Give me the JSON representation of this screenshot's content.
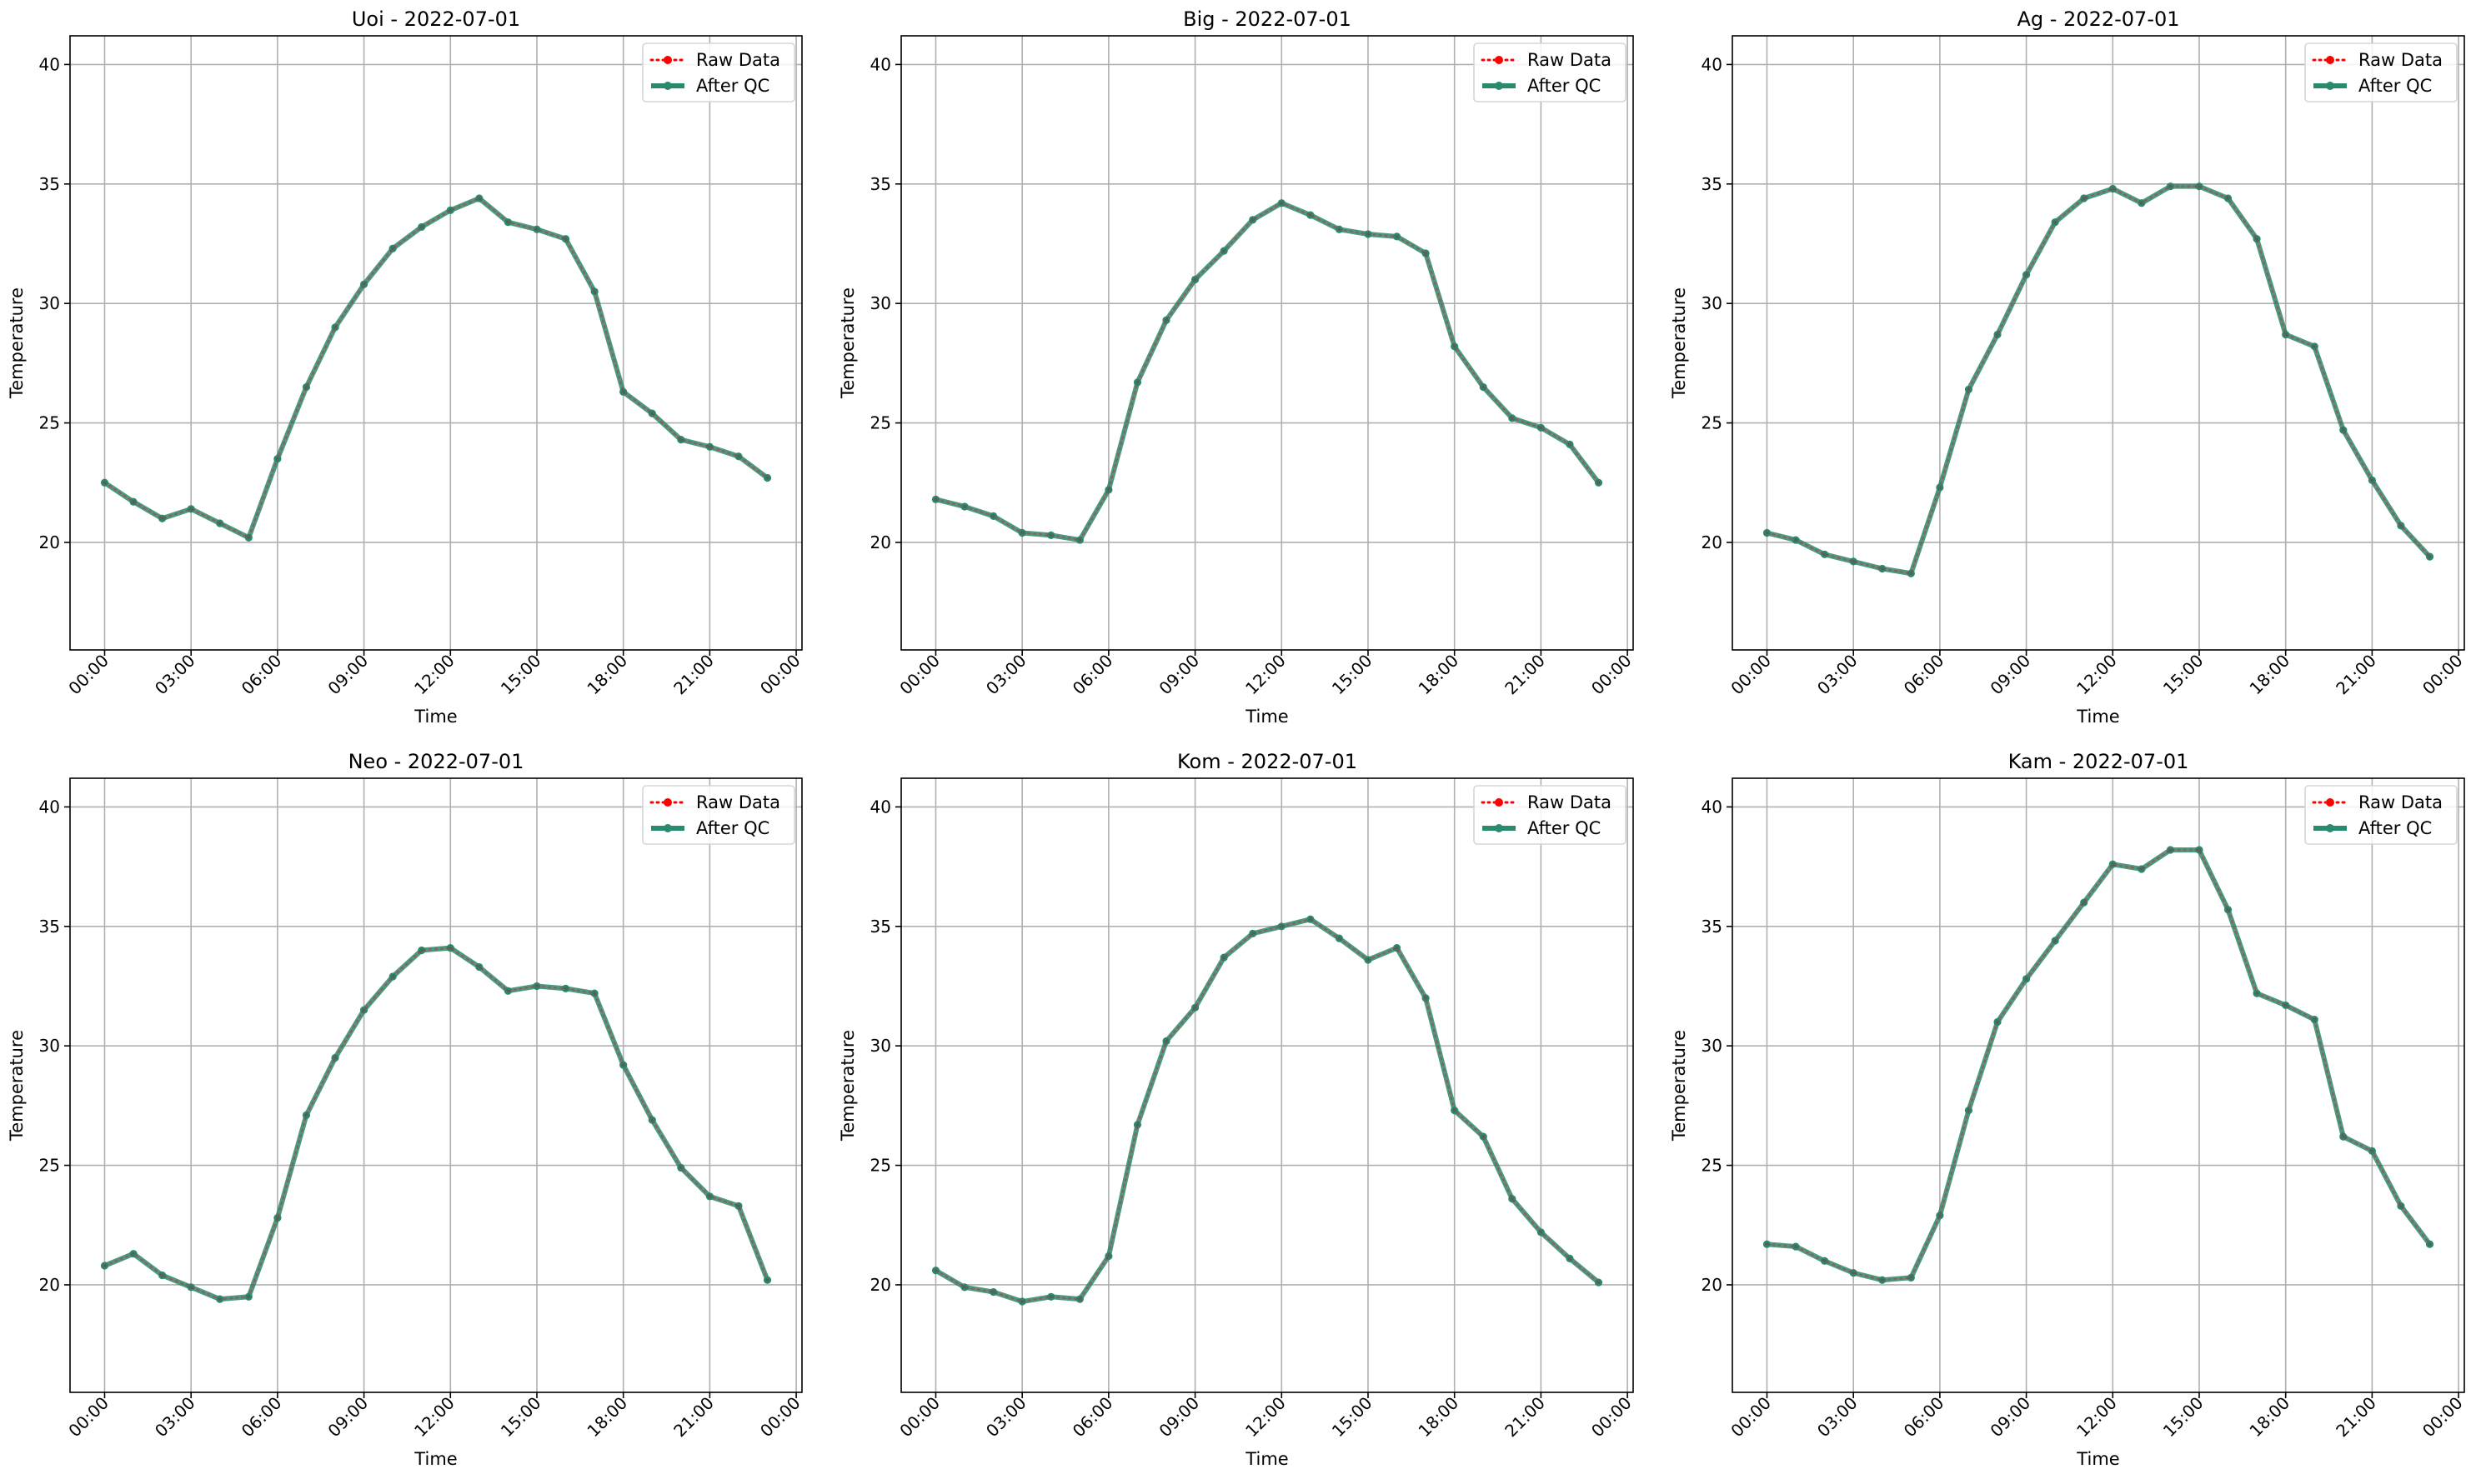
{
  "figure": {
    "background": "#ffffff"
  },
  "style": {
    "raw_color": "#ff0000",
    "qc_color": "#2a8a6e",
    "grid_color": "#b0b0b0",
    "axis_color": "#000000"
  },
  "legend": {
    "raw_label": "Raw Data",
    "qc_label": "After QC",
    "placement": "upper right"
  },
  "chart_data": [
    {
      "type": "line",
      "title": "Uoi - 2022-07-01",
      "xlabel": "Time",
      "ylabel": "Temperature",
      "ylim": [
        15.5,
        41.2
      ],
      "yticks": [
        20,
        25,
        30,
        35,
        40
      ],
      "xticks": [
        "00:00",
        "03:00",
        "06:00",
        "09:00",
        "12:00",
        "15:00",
        "18:00",
        "21:00",
        "00:00"
      ],
      "grid": true,
      "x_hours": [
        0,
        1,
        2,
        3,
        4,
        5,
        6,
        7,
        8,
        9,
        10,
        11,
        12,
        13,
        14,
        15,
        16,
        17,
        18,
        19,
        20,
        21,
        22,
        23
      ],
      "series": [
        {
          "name": "Raw Data",
          "values": [
            22.5,
            21.7,
            21.0,
            21.4,
            20.8,
            20.2,
            23.5,
            26.5,
            29.0,
            30.8,
            32.3,
            33.2,
            33.9,
            34.4,
            33.4,
            33.1,
            32.7,
            30.5,
            26.3,
            25.4,
            24.3,
            24.0,
            23.6,
            22.7
          ]
        },
        {
          "name": "After QC",
          "values": [
            22.5,
            21.7,
            21.0,
            21.4,
            20.8,
            20.2,
            23.5,
            26.5,
            29.0,
            30.8,
            32.3,
            33.2,
            33.9,
            34.4,
            33.4,
            33.1,
            32.7,
            30.5,
            26.3,
            25.4,
            24.3,
            24.0,
            23.6,
            22.7
          ]
        }
      ]
    },
    {
      "type": "line",
      "title": "Big - 2022-07-01",
      "xlabel": "Time",
      "ylabel": "Temperature",
      "ylim": [
        15.5,
        41.2
      ],
      "yticks": [
        20,
        25,
        30,
        35,
        40
      ],
      "xticks": [
        "00:00",
        "03:00",
        "06:00",
        "09:00",
        "12:00",
        "15:00",
        "18:00",
        "21:00",
        "00:00"
      ],
      "grid": true,
      "x_hours": [
        0,
        1,
        2,
        3,
        4,
        5,
        6,
        7,
        8,
        9,
        10,
        11,
        12,
        13,
        14,
        15,
        16,
        17,
        18,
        19,
        20,
        21,
        22,
        23
      ],
      "series": [
        {
          "name": "Raw Data",
          "values": [
            21.8,
            21.5,
            21.1,
            20.4,
            20.3,
            20.1,
            22.2,
            26.7,
            29.3,
            31.0,
            32.2,
            33.5,
            34.2,
            33.7,
            33.1,
            32.9,
            32.8,
            32.1,
            28.2,
            26.5,
            25.2,
            24.8,
            24.1,
            22.5
          ]
        },
        {
          "name": "After QC",
          "values": [
            21.8,
            21.5,
            21.1,
            20.4,
            20.3,
            20.1,
            22.2,
            26.7,
            29.3,
            31.0,
            32.2,
            33.5,
            34.2,
            33.7,
            33.1,
            32.9,
            32.8,
            32.1,
            28.2,
            26.5,
            25.2,
            24.8,
            24.1,
            22.5
          ]
        }
      ]
    },
    {
      "type": "line",
      "title": "Ag - 2022-07-01",
      "xlabel": "Time",
      "ylabel": "Temperature",
      "ylim": [
        15.5,
        41.2
      ],
      "yticks": [
        20,
        25,
        30,
        35,
        40
      ],
      "xticks": [
        "00:00",
        "03:00",
        "06:00",
        "09:00",
        "12:00",
        "15:00",
        "18:00",
        "21:00",
        "00:00"
      ],
      "grid": true,
      "x_hours": [
        0,
        1,
        2,
        3,
        4,
        5,
        6,
        7,
        8,
        9,
        10,
        11,
        12,
        13,
        14,
        15,
        16,
        17,
        18,
        19,
        20,
        21,
        22,
        23
      ],
      "series": [
        {
          "name": "Raw Data",
          "values": [
            20.4,
            20.1,
            19.5,
            19.2,
            18.9,
            18.7,
            22.3,
            26.4,
            28.7,
            31.2,
            33.4,
            34.4,
            34.8,
            34.2,
            34.9,
            34.9,
            34.4,
            32.7,
            28.7,
            28.2,
            24.7,
            22.6,
            20.7,
            19.4
          ]
        },
        {
          "name": "After QC",
          "values": [
            20.4,
            20.1,
            19.5,
            19.2,
            18.9,
            18.7,
            22.3,
            26.4,
            28.7,
            31.2,
            33.4,
            34.4,
            34.8,
            34.2,
            34.9,
            34.9,
            34.4,
            32.7,
            28.7,
            28.2,
            24.7,
            22.6,
            20.7,
            19.4
          ]
        }
      ]
    },
    {
      "type": "line",
      "title": "Neo - 2022-07-01",
      "xlabel": "Time",
      "ylabel": "Temperature",
      "ylim": [
        15.5,
        41.2
      ],
      "yticks": [
        20,
        25,
        30,
        35,
        40
      ],
      "xticks": [
        "00:00",
        "03:00",
        "06:00",
        "09:00",
        "12:00",
        "15:00",
        "18:00",
        "21:00",
        "00:00"
      ],
      "grid": true,
      "x_hours": [
        0,
        1,
        2,
        3,
        4,
        5,
        6,
        7,
        8,
        9,
        10,
        11,
        12,
        13,
        14,
        15,
        16,
        17,
        18,
        19,
        20,
        21,
        22,
        23
      ],
      "series": [
        {
          "name": "Raw Data",
          "values": [
            20.8,
            21.3,
            20.4,
            19.9,
            19.4,
            19.5,
            22.8,
            27.1,
            29.5,
            31.5,
            32.9,
            34.0,
            34.1,
            33.3,
            32.3,
            32.5,
            32.4,
            32.2,
            29.2,
            26.9,
            24.9,
            23.7,
            23.3,
            20.2
          ]
        },
        {
          "name": "After QC",
          "values": [
            20.8,
            21.3,
            20.4,
            19.9,
            19.4,
            19.5,
            22.8,
            27.1,
            29.5,
            31.5,
            32.9,
            34.0,
            34.1,
            33.3,
            32.3,
            32.5,
            32.4,
            32.2,
            29.2,
            26.9,
            24.9,
            23.7,
            23.3,
            20.2
          ]
        }
      ]
    },
    {
      "type": "line",
      "title": "Kom - 2022-07-01",
      "xlabel": "Time",
      "ylabel": "Temperature",
      "ylim": [
        15.5,
        41.2
      ],
      "yticks": [
        20,
        25,
        30,
        35,
        40
      ],
      "xticks": [
        "00:00",
        "03:00",
        "06:00",
        "09:00",
        "12:00",
        "15:00",
        "18:00",
        "21:00",
        "00:00"
      ],
      "grid": true,
      "x_hours": [
        0,
        1,
        2,
        3,
        4,
        5,
        6,
        7,
        8,
        9,
        10,
        11,
        12,
        13,
        14,
        15,
        16,
        17,
        18,
        19,
        20,
        21,
        22,
        23
      ],
      "series": [
        {
          "name": "Raw Data",
          "values": [
            20.6,
            19.9,
            19.7,
            19.3,
            19.5,
            19.4,
            21.2,
            26.7,
            30.2,
            31.6,
            33.7,
            34.7,
            35.0,
            35.3,
            34.5,
            33.6,
            34.1,
            32.0,
            27.3,
            26.2,
            23.6,
            22.2,
            21.1,
            20.1
          ]
        },
        {
          "name": "After QC",
          "values": [
            20.6,
            19.9,
            19.7,
            19.3,
            19.5,
            19.4,
            21.2,
            26.7,
            30.2,
            31.6,
            33.7,
            34.7,
            35.0,
            35.3,
            34.5,
            33.6,
            34.1,
            32.0,
            27.3,
            26.2,
            23.6,
            22.2,
            21.1,
            20.1
          ]
        }
      ]
    },
    {
      "type": "line",
      "title": "Kam - 2022-07-01",
      "xlabel": "Time",
      "ylabel": "Temperature",
      "ylim": [
        15.5,
        41.2
      ],
      "yticks": [
        20,
        25,
        30,
        35,
        40
      ],
      "xticks": [
        "00:00",
        "03:00",
        "06:00",
        "09:00",
        "12:00",
        "15:00",
        "18:00",
        "21:00",
        "00:00"
      ],
      "grid": true,
      "x_hours": [
        0,
        1,
        2,
        3,
        4,
        5,
        6,
        7,
        8,
        9,
        10,
        11,
        12,
        13,
        14,
        15,
        16,
        17,
        18,
        19,
        20,
        21,
        22,
        23
      ],
      "series": [
        {
          "name": "Raw Data",
          "values": [
            21.7,
            21.6,
            21.0,
            20.5,
            20.2,
            20.3,
            22.9,
            27.3,
            31.0,
            32.8,
            34.4,
            36.0,
            37.6,
            37.4,
            38.2,
            38.2,
            35.7,
            32.2,
            31.7,
            31.1,
            26.2,
            25.6,
            23.3,
            21.7
          ]
        },
        {
          "name": "After QC",
          "values": [
            21.7,
            21.6,
            21.0,
            20.5,
            20.2,
            20.3,
            22.9,
            27.3,
            31.0,
            32.8,
            34.4,
            36.0,
            37.6,
            37.4,
            38.2,
            38.2,
            35.7,
            32.2,
            31.7,
            31.1,
            26.2,
            25.6,
            23.3,
            21.7
          ]
        }
      ]
    }
  ]
}
